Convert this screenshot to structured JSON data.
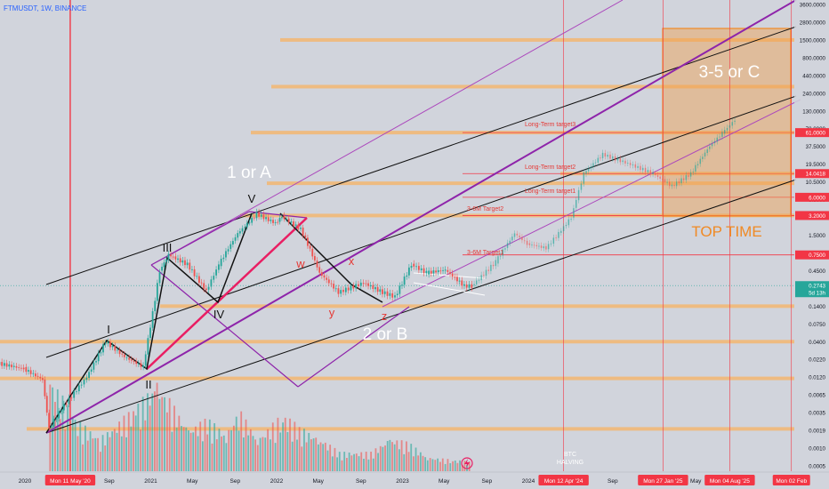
{
  "symbol_label": "FTMUSDT, 1W, BINANCE",
  "colors": {
    "background": "#d1d4dc",
    "candle_up": "#26a69a",
    "candle_down": "#ef5350",
    "level": "#f5b46a",
    "channel": "#111111",
    "purple": "#8e24aa",
    "magenta": "#e91e63",
    "vline": "#f23645",
    "box": "#f0a04b"
  },
  "chart_data": {
    "type": "candlestick",
    "title": "FTMUSDT, 1W, BINANCE",
    "y_scale": "log",
    "y_ticks": [
      "3600.0000",
      "2800.0000",
      "1500.0000",
      "800.0000",
      "440.0000",
      "240.0000",
      "130.0000",
      "70.0000",
      "37.5000",
      "19.5000",
      "10.5000",
      "5.5000",
      "3.0000",
      "1.5000",
      "0.8000",
      "0.4500",
      "0.2500",
      "0.1400",
      "0.0750",
      "0.0400",
      "0.0220",
      "0.0120",
      "0.0065",
      "0.0035",
      "0.0019",
      "0.0010",
      "0.0005"
    ],
    "price_badges": [
      "61.0000",
      "14.0418",
      "6.0000",
      "3.2000",
      "0.7500",
      "0.2743",
      "5d 13h"
    ],
    "x_ticks": [
      "2020",
      "Mon 11 May '20",
      "Sep",
      "2021",
      "May",
      "Sep",
      "2022",
      "May",
      "Sep",
      "2023",
      "May",
      "Sep",
      "2024",
      "Mon 12 Apr '24",
      "Sep",
      "Mon 27 Jan '25",
      "May",
      "Mon 04 Aug '25",
      "Mon 02 Feb"
    ],
    "wave_labels": [
      "I",
      "II",
      "III",
      "IV",
      "V",
      "w",
      "x",
      "y",
      "z",
      "1 or A",
      "2 or B",
      "3-5 or C"
    ],
    "target_labels": [
      "Long-Term target3",
      "Long-Term target2",
      "Long-Term target1",
      "3-6M Target2",
      "3-6M Target1"
    ],
    "zone_label": "TOP TIME",
    "event_label": [
      "BTC",
      "HALVING"
    ],
    "key_levels": [
      61.0,
      14.0418,
      6.0,
      3.2,
      0.75,
      0.2743
    ],
    "price_path": [
      [
        2019.5,
        0.022
      ],
      [
        2019.75,
        0.02
      ],
      [
        2020.0,
        0.016
      ],
      [
        2020.15,
        0.011
      ],
      [
        2020.2,
        0.002
      ],
      [
        2020.3,
        0.004
      ],
      [
        2020.5,
        0.012
      ],
      [
        2020.65,
        0.04
      ],
      [
        2020.8,
        0.024
      ],
      [
        2020.95,
        0.017
      ],
      [
        2021.08,
        0.45
      ],
      [
        2021.15,
        0.75
      ],
      [
        2021.3,
        0.55
      ],
      [
        2021.45,
        0.23
      ],
      [
        2021.55,
        0.55
      ],
      [
        2021.7,
        1.6
      ],
      [
        2021.85,
        3.4
      ],
      [
        2022.0,
        2.4
      ],
      [
        2022.05,
        3.1
      ],
      [
        2022.2,
        1.9
      ],
      [
        2022.35,
        0.42
      ],
      [
        2022.5,
        0.22
      ],
      [
        2022.7,
        0.3
      ],
      [
        2022.85,
        0.22
      ],
      [
        2022.95,
        0.19
      ],
      [
        2023.08,
        0.55
      ],
      [
        2023.2,
        0.42
      ],
      [
        2023.35,
        0.46
      ],
      [
        2023.5,
        0.27
      ],
      [
        2023.56,
        0.27
      ]
    ],
    "projection_path": [
      [
        2023.56,
        0.27
      ],
      [
        2023.75,
        0.6
      ],
      [
        2023.9,
        1.6
      ],
      [
        2024.0,
        1.1
      ],
      [
        2024.15,
        0.95
      ],
      [
        2024.25,
        1.6
      ],
      [
        2024.35,
        3.0
      ],
      [
        2024.45,
        14
      ],
      [
        2024.6,
        28
      ],
      [
        2024.8,
        20
      ],
      [
        2025.0,
        14
      ],
      [
        2025.15,
        9
      ],
      [
        2025.3,
        14
      ],
      [
        2025.45,
        38
      ],
      [
        2025.55,
        60
      ],
      [
        2025.65,
        95
      ]
    ],
    "volume": [
      [
        2020.2,
        1.0
      ],
      [
        2020.4,
        0.55
      ],
      [
        2020.6,
        0.35
      ],
      [
        2020.9,
        0.7
      ],
      [
        2021.05,
        0.95
      ],
      [
        2021.15,
        0.75
      ],
      [
        2021.3,
        0.45
      ],
      [
        2021.45,
        0.55
      ],
      [
        2021.6,
        0.4
      ],
      [
        2021.7,
        0.65
      ],
      [
        2021.85,
        0.35
      ],
      [
        2022.05,
        0.6
      ],
      [
        2022.2,
        0.45
      ],
      [
        2022.35,
        0.35
      ],
      [
        2022.5,
        0.2
      ],
      [
        2022.75,
        0.2
      ],
      [
        2022.9,
        0.35
      ],
      [
        2023.05,
        0.3
      ],
      [
        2023.2,
        0.15
      ],
      [
        2023.4,
        0.12
      ],
      [
        2023.55,
        0.1
      ]
    ]
  }
}
